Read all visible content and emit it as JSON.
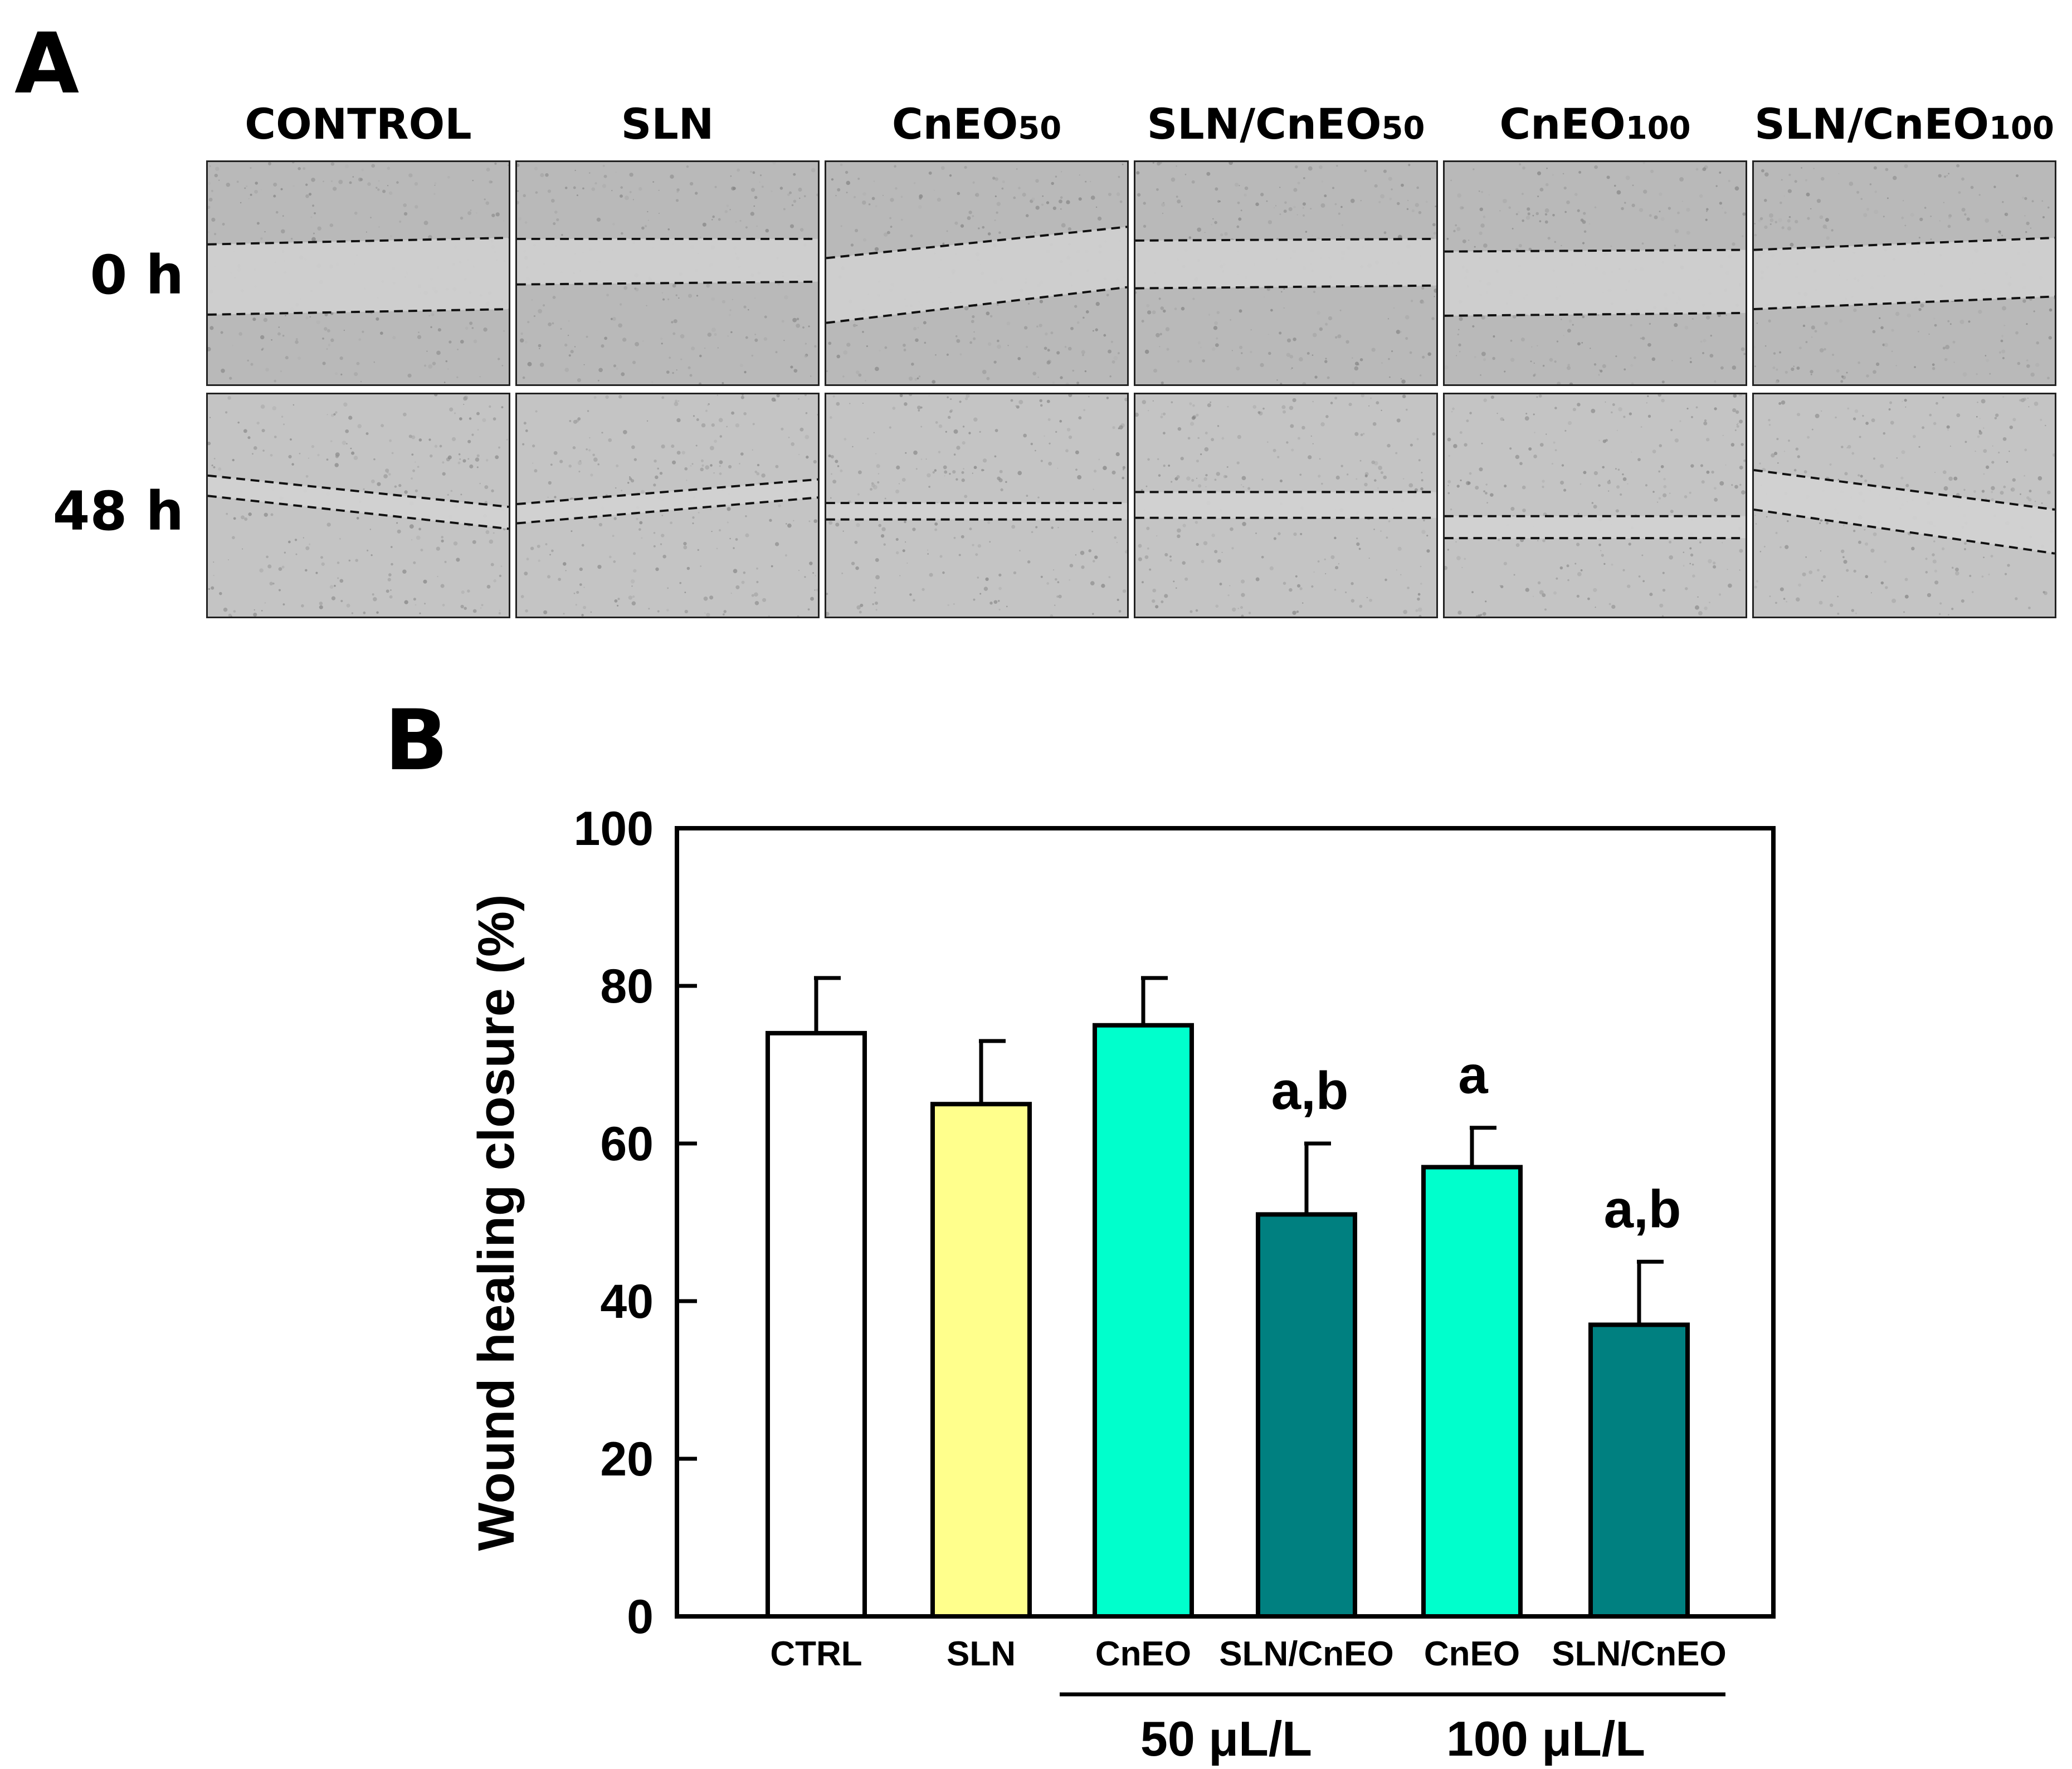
{
  "panel_a": {
    "letter": "A",
    "columns": [
      {
        "main": "CONTROL",
        "sub": ""
      },
      {
        "main": "SLN",
        "sub": ""
      },
      {
        "main": "CnEO",
        "sub": "50"
      },
      {
        "main": "SLN/CnEO",
        "sub": "50"
      },
      {
        "main": "CnEO",
        "sub": "100"
      },
      {
        "main": "SLN/CnEO",
        "sub": "100"
      }
    ],
    "rows": [
      "0 h",
      "48 h"
    ]
  },
  "chart_data": {
    "type": "bar",
    "panel_letter": "B",
    "ylabel": "Wound healing closure (%)",
    "ylim": [
      0,
      100
    ],
    "yticks": [
      0,
      20,
      40,
      60,
      80,
      100
    ],
    "categories": [
      "CTRL",
      "SLN",
      "CnEO",
      "SLN/CnEO",
      "CnEO",
      "SLN/CnEO"
    ],
    "values": [
      74,
      65,
      75,
      51,
      57,
      37
    ],
    "errors": [
      7,
      8,
      6,
      9,
      5,
      8
    ],
    "bar_colors": [
      "#ffffff",
      "#ffff8c",
      "#00ffcc",
      "#008080",
      "#00ffcc",
      "#008080"
    ],
    "annotations": [
      "",
      "",
      "",
      "a,b",
      "a",
      "a,b"
    ],
    "groups": [
      {
        "label": "50 μL/L",
        "bars": [
          2,
          3
        ]
      },
      {
        "label": "100 μL/L",
        "bars": [
          4,
          5
        ]
      }
    ]
  }
}
